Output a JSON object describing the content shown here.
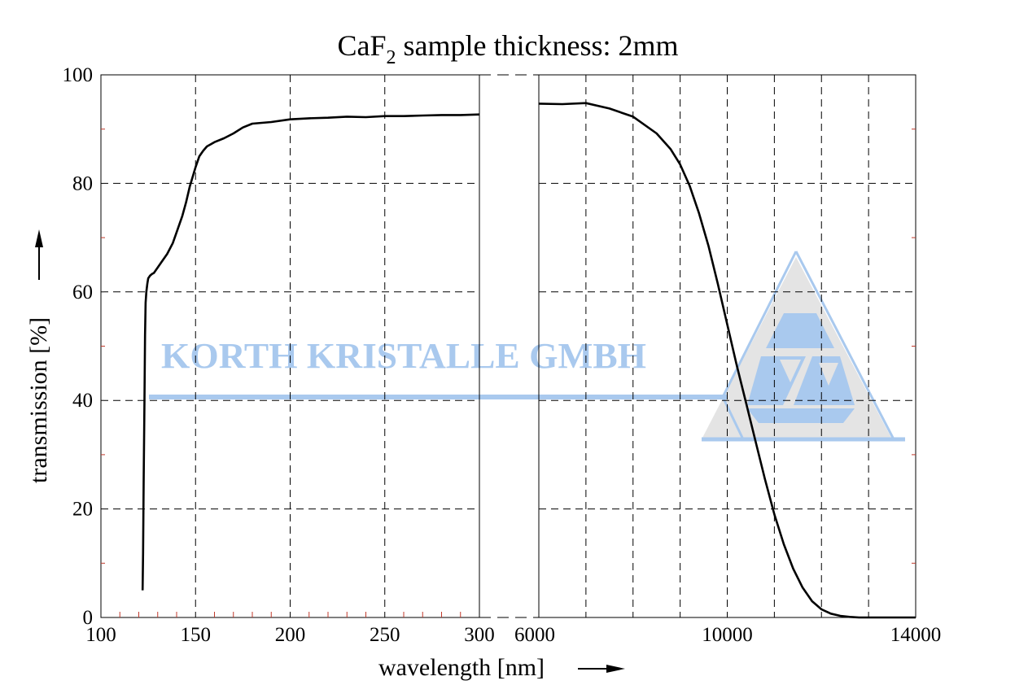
{
  "chart_data": {
    "type": "line",
    "title": {
      "base": "CaF",
      "subscript": "2",
      "rest": " sample thickness: 2mm"
    },
    "xlabel": "wavelength [nm]",
    "ylabel": "transmission [%]",
    "ylim": [
      0,
      100
    ],
    "y_ticks": [
      0,
      20,
      40,
      60,
      80,
      100
    ],
    "grid": true,
    "legend": "none",
    "panels": [
      {
        "name": "uv",
        "xlim": [
          100,
          300
        ],
        "x_ticks": [
          100,
          150,
          200,
          250,
          300
        ],
        "x_grid": [
          150,
          200,
          250
        ],
        "minor_ticks": [
          110,
          120,
          130,
          140,
          160,
          170,
          180,
          190,
          210,
          220,
          230,
          240,
          260,
          270,
          280,
          290
        ],
        "x": [
          122,
          122.3,
          122.6,
          123,
          123.3,
          123.6,
          124,
          124.5,
          125,
          126,
          127,
          128,
          130,
          132,
          135,
          138,
          140,
          143,
          145,
          147,
          150,
          152,
          154,
          156,
          158,
          160,
          165,
          170,
          175,
          180,
          190,
          200,
          210,
          220,
          230,
          240,
          250,
          260,
          270,
          280,
          290,
          300
        ],
        "y": [
          5,
          12,
          25,
          40,
          52,
          58,
          60,
          61.5,
          62.5,
          63,
          63.3,
          63.5,
          64.5,
          65.5,
          67,
          69,
          71,
          74,
          76.5,
          79.5,
          83,
          85,
          86,
          86.8,
          87.2,
          87.6,
          88.3,
          89.2,
          90.3,
          91,
          91.3,
          91.8,
          92,
          92.1,
          92.3,
          92.2,
          92.4,
          92.4,
          92.5,
          92.6,
          92.6,
          92.7
        ]
      },
      {
        "name": "ir",
        "xlim": [
          6000,
          14000
        ],
        "x_ticks": [
          6000,
          10000,
          14000
        ],
        "x_grid": [
          7000,
          8000,
          9000,
          10000,
          11000,
          12000,
          13000
        ],
        "minor_ticks": [],
        "x": [
          6000,
          6500,
          7000,
          7500,
          8000,
          8500,
          8800,
          9000,
          9200,
          9400,
          9600,
          9800,
          10000,
          10200,
          10400,
          10600,
          10800,
          11000,
          11200,
          11400,
          11600,
          11800,
          12000,
          12200,
          12400,
          12600,
          12800,
          13000,
          13500,
          14000
        ],
        "y": [
          94.7,
          94.6,
          94.8,
          93.8,
          92.3,
          89.2,
          86.3,
          83.5,
          79.6,
          74.5,
          68.5,
          61.5,
          54,
          46.5,
          39.5,
          32.5,
          25.5,
          19,
          13.5,
          9,
          5.5,
          3,
          1.5,
          0.7,
          0.3,
          0.1,
          0,
          0,
          0,
          0
        ]
      }
    ]
  },
  "watermark": {
    "text": "KORTH KRISTALLE GMBH",
    "logo_name": "korth-kristalle-triangle-logo",
    "colors": {
      "blue": "#a9c9ee",
      "gray": "#e4e4e4"
    }
  },
  "colors": {
    "line": "#000000",
    "grid": "#000000",
    "minor_tick": "#c0392b"
  }
}
